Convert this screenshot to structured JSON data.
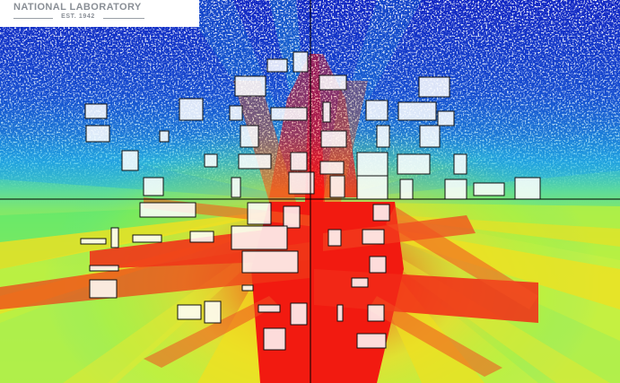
{
  "logo": {
    "title": "NATIONAL LABORATORY",
    "subtitle": "EST. 1942"
  },
  "colors": {
    "low": "#0a1fb8",
    "mid_low": "#18b4f0",
    "mid": "#7cf04a",
    "mid_high": "#f2e020",
    "high": "#f21a10",
    "building": "#ffffff",
    "outline": "#101010"
  },
  "icons": {
    "building": "building-footprint-icon",
    "crosshair": "crosshair-icon"
  }
}
